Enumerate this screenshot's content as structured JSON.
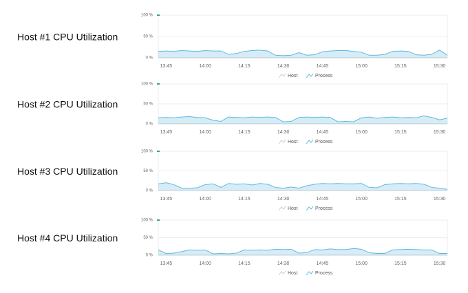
{
  "chart_data": [
    {
      "type": "area",
      "title": "Host #1 CPU Utilization",
      "categories": [
        null,
        "13:45",
        null,
        null,
        null,
        null,
        "14:00",
        null,
        null,
        null,
        null,
        "14:15",
        null,
        null,
        null,
        null,
        "14:30",
        null,
        null,
        null,
        null,
        "14:45",
        null,
        null,
        null,
        null,
        "15:00",
        null,
        null,
        null,
        null,
        "15:15",
        null,
        null,
        null,
        null,
        "15:30",
        null
      ],
      "series": [
        {
          "name": "Host",
          "color": "#2aa39a",
          "values": [
            100,
            null,
            null,
            null,
            null,
            null,
            null,
            null,
            null,
            null,
            null,
            null,
            null,
            null,
            null,
            null,
            null,
            null,
            null,
            null,
            null,
            null,
            null,
            null,
            null,
            null,
            null,
            null,
            null,
            null,
            null,
            null,
            null,
            null,
            null,
            null,
            null,
            null
          ]
        },
        {
          "name": "Process",
          "color": "#5bb8e0",
          "values": [
            15,
            16,
            15,
            17,
            16,
            15,
            17,
            16,
            16,
            8,
            10,
            15,
            17,
            18,
            16,
            6,
            5,
            6,
            12,
            6,
            7,
            14,
            16,
            17,
            17,
            15,
            13,
            6,
            6,
            8,
            15,
            16,
            15,
            7,
            6,
            8,
            18,
            6
          ]
        }
      ],
      "ylim": [
        0,
        100
      ],
      "yticks": [
        {
          "value": 0,
          "label": "0 %"
        },
        {
          "value": 50,
          "label": "50 %"
        },
        {
          "value": 100,
          "label": "100 %"
        }
      ],
      "grid": true
    },
    {
      "type": "area",
      "title": "Host #2 CPU Utilization",
      "categories": [
        null,
        "13:45",
        null,
        null,
        null,
        null,
        "14:00",
        null,
        null,
        null,
        null,
        "14:15",
        null,
        null,
        null,
        null,
        "14:30",
        null,
        null,
        null,
        null,
        "14:45",
        null,
        null,
        null,
        null,
        "15:00",
        null,
        null,
        null,
        null,
        "15:15",
        null,
        null,
        null,
        null,
        "15:30",
        null
      ],
      "series": [
        {
          "name": "Host",
          "color": "#2aa39a",
          "values": [
            100,
            null,
            null,
            null,
            null,
            null,
            null,
            null,
            null,
            null,
            null,
            null,
            null,
            null,
            null,
            null,
            null,
            null,
            null,
            null,
            null,
            null,
            null,
            null,
            null,
            null,
            null,
            null,
            null,
            null,
            null,
            null,
            null,
            null,
            null,
            null,
            null,
            null
          ]
        },
        {
          "name": "Process",
          "color": "#5bb8e0",
          "values": [
            15,
            16,
            15,
            17,
            18,
            16,
            15,
            9,
            6,
            17,
            16,
            15,
            17,
            16,
            17,
            16,
            5,
            6,
            16,
            17,
            16,
            17,
            16,
            5,
            6,
            5,
            15,
            17,
            14,
            16,
            17,
            15,
            16,
            15,
            20,
            16,
            10,
            14
          ]
        }
      ],
      "ylim": [
        0,
        100
      ],
      "yticks": [
        {
          "value": 0,
          "label": "0 %"
        },
        {
          "value": 50,
          "label": "50 %"
        },
        {
          "value": 100,
          "label": "100 %"
        }
      ],
      "grid": true
    },
    {
      "type": "area",
      "title": "Host #3 CPU Utilization",
      "categories": [
        null,
        "13:45",
        null,
        null,
        null,
        null,
        "14:00",
        null,
        null,
        null,
        null,
        "14:15",
        null,
        null,
        null,
        null,
        "14:30",
        null,
        null,
        null,
        null,
        "14:45",
        null,
        null,
        null,
        null,
        "15:00",
        null,
        null,
        null,
        null,
        "15:15",
        null,
        null,
        null,
        null,
        "15:30",
        null
      ],
      "series": [
        {
          "name": "Host",
          "color": "#2aa39a",
          "values": [
            100,
            null,
            null,
            null,
            null,
            null,
            null,
            null,
            null,
            null,
            null,
            null,
            null,
            null,
            null,
            null,
            null,
            null,
            null,
            null,
            null,
            null,
            null,
            null,
            null,
            null,
            null,
            null,
            null,
            null,
            null,
            null,
            null,
            null,
            null,
            null,
            null,
            null
          ]
        },
        {
          "name": "Process",
          "color": "#5bb8e0",
          "values": [
            17,
            20,
            15,
            6,
            6,
            7,
            15,
            17,
            8,
            18,
            16,
            17,
            14,
            18,
            16,
            8,
            6,
            9,
            6,
            12,
            16,
            18,
            17,
            18,
            17,
            17,
            18,
            8,
            7,
            15,
            17,
            18,
            17,
            18,
            16,
            8,
            6,
            3
          ]
        }
      ],
      "ylim": [
        0,
        100
      ],
      "yticks": [
        {
          "value": 0,
          "label": "0 %"
        },
        {
          "value": 50,
          "label": "50 %"
        },
        {
          "value": 100,
          "label": "100 %"
        }
      ],
      "grid": true
    },
    {
      "type": "area",
      "title": "Host #4 CPU Utilization",
      "categories": [
        null,
        "13:45",
        null,
        null,
        null,
        null,
        "14:00",
        null,
        null,
        null,
        null,
        "14:15",
        null,
        null,
        null,
        null,
        "14:30",
        null,
        null,
        null,
        null,
        "14:45",
        null,
        null,
        null,
        null,
        "15:00",
        null,
        null,
        null,
        null,
        "15:15",
        null,
        null,
        null,
        null,
        "15:30",
        null
      ],
      "series": [
        {
          "name": "Host",
          "color": "#2aa39a",
          "values": [
            100,
            null,
            null,
            null,
            null,
            null,
            null,
            null,
            null,
            null,
            null,
            null,
            null,
            null,
            null,
            null,
            null,
            null,
            null,
            null,
            null,
            null,
            null,
            null,
            null,
            null,
            null,
            null,
            null,
            null,
            null,
            null,
            null,
            null,
            null,
            null,
            null,
            null
          ]
        },
        {
          "name": "Process",
          "color": "#5bb8e0",
          "values": [
            15,
            5,
            6,
            10,
            15,
            14,
            15,
            4,
            5,
            4,
            6,
            15,
            14,
            15,
            14,
            17,
            16,
            17,
            6,
            7,
            16,
            15,
            18,
            16,
            16,
            19,
            17,
            7,
            5,
            5,
            15,
            16,
            17,
            16,
            15,
            15,
            5,
            5
          ]
        }
      ],
      "ylim": [
        0,
        100
      ],
      "yticks": [
        {
          "value": 0,
          "label": "0 %"
        },
        {
          "value": 50,
          "label": "50 %"
        },
        {
          "value": 100,
          "label": "100 %"
        }
      ],
      "grid": true
    }
  ]
}
